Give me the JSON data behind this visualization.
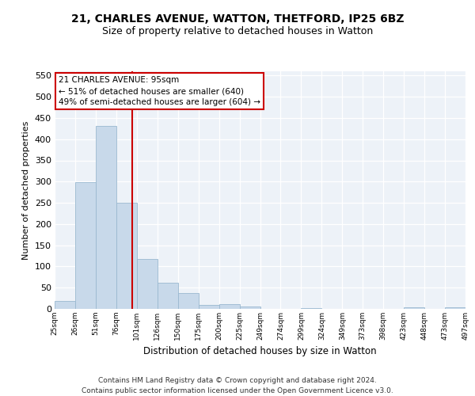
{
  "title_line1": "21, CHARLES AVENUE, WATTON, THETFORD, IP25 6BZ",
  "title_line2": "Size of property relative to detached houses in Watton",
  "xlabel": "Distribution of detached houses by size in Watton",
  "ylabel": "Number of detached properties",
  "bar_color": "#c8d9ea",
  "bar_edge_color": "#9ab8d0",
  "bin_labels": [
    "25sqm",
    "26sqm",
    "51sqm",
    "76sqm",
    "101sqm",
    "126sqm",
    "150sqm",
    "175sqm",
    "200sqm",
    "225sqm",
    "249sqm",
    "274sqm",
    "299sqm",
    "324sqm",
    "349sqm",
    "373sqm",
    "398sqm",
    "423sqm",
    "448sqm",
    "473sqm",
    "497sqm"
  ],
  "values": [
    18,
    298,
    432,
    250,
    118,
    62,
    37,
    10,
    12,
    5,
    0,
    0,
    2,
    0,
    0,
    0,
    0,
    3,
    0,
    3
  ],
  "vline_x": 3.76,
  "vline_color": "#cc0000",
  "box_edge_color": "#cc0000",
  "annotation_title": "21 CHARLES AVENUE: 95sqm",
  "annotation_line2": "← 51% of detached houses are smaller (640)",
  "annotation_line3": "49% of semi-detached houses are larger (604) →",
  "ylim": [
    0,
    560
  ],
  "yticks": [
    0,
    50,
    100,
    150,
    200,
    250,
    300,
    350,
    400,
    450,
    500,
    550
  ],
  "bg_color": "#edf2f8",
  "grid_color": "#ffffff",
  "footnote1": "Contains HM Land Registry data © Crown copyright and database right 2024.",
  "footnote2": "Contains public sector information licensed under the Open Government Licence v3.0."
}
